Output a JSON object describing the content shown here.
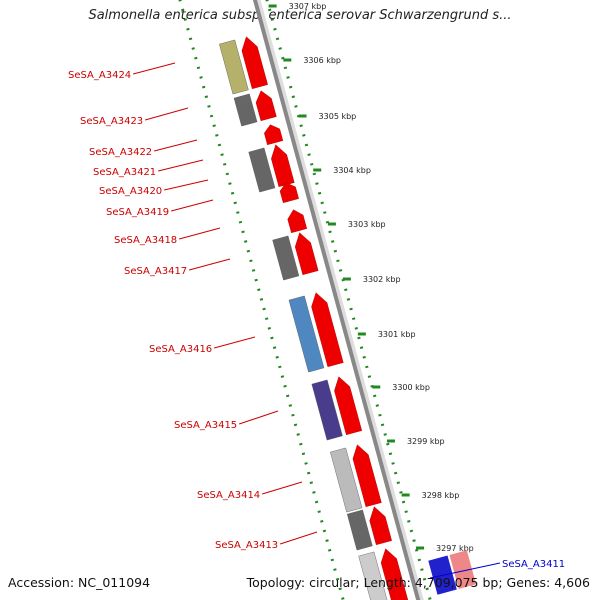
{
  "title": "Salmonella enterica subsp. enterica serovar Schwarzengrund s...",
  "footer": {
    "accession": "Accession: NC_011094",
    "topology": "Topology: circular; Length: 4,709,075 bp; Genes: 4,606"
  },
  "scale_ticks": [
    "3307 kbp",
    "3306 kbp",
    "3305 kbp",
    "3304 kbp",
    "3303 kbp",
    "3302 kbp",
    "3301 kbp",
    "3300 kbp",
    "3299 kbp",
    "3298 kbp",
    "3297 kbp"
  ],
  "genes": [
    {
      "label": "SeSA_A3424",
      "color": "#b5b06a",
      "labelColor": "#cc0000"
    },
    {
      "label": "SeSA_A3423",
      "color": "#666666",
      "labelColor": "#cc0000"
    },
    {
      "label": "SeSA_A3422",
      "color": "#666666",
      "labelColor": "#cc0000"
    },
    {
      "label": "SeSA_A3421",
      "color": "#666666",
      "labelColor": "#cc0000"
    },
    {
      "label": "SeSA_A3420",
      "color": "#666666",
      "labelColor": "#cc0000"
    },
    {
      "label": "SeSA_A3419",
      "color": "#666666",
      "labelColor": "#cc0000"
    },
    {
      "label": "SeSA_A3418",
      "color": "#666666",
      "labelColor": "#cc0000"
    },
    {
      "label": "SeSA_A3417",
      "color": "#666666",
      "labelColor": "#cc0000"
    },
    {
      "label": "SeSA_A3416",
      "color": "#4f88c0",
      "labelColor": "#cc0000"
    },
    {
      "label": "SeSA_A3415",
      "color": "#4a3c8c",
      "labelColor": "#cc0000"
    },
    {
      "label": "SeSA_A3414",
      "color": "#bbbbbb",
      "labelColor": "#cc0000"
    },
    {
      "label": "SeSA_A3413",
      "color": "#666666",
      "labelColor": "#cc0000"
    },
    {
      "label": "SeSA_A3411",
      "color": "#2222cc",
      "labelColor": "#0000cc"
    }
  ],
  "colors": {
    "forward_gene": "#ee0000",
    "backbone": "#888888",
    "dotted_ring": "#228822",
    "tick_text": "#222222"
  }
}
